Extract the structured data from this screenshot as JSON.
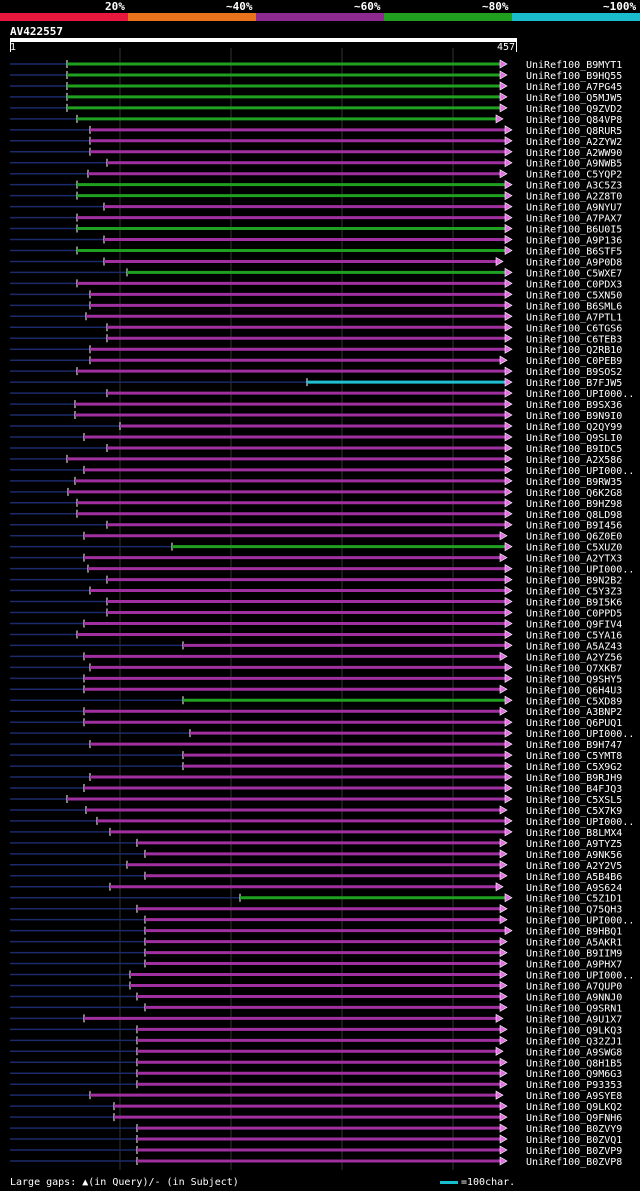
{
  "legend": {
    "segments": [
      {
        "label": "20%",
        "color": "#e8173c"
      },
      {
        "label": "~40%",
        "color": "#e8731c"
      },
      {
        "label": "~60%",
        "color": "#8e2a8f"
      },
      {
        "label": "~80%",
        "color": "#21a01f"
      },
      {
        "label": "~100%",
        "color": "#1abccb"
      }
    ]
  },
  "query": {
    "id": "AV422557",
    "start": "1",
    "end": "457"
  },
  "colors": {
    "purple": "#a030a0",
    "green": "#20a020",
    "cyan": "#20c0d0",
    "pink": "#e070e0",
    "navy": "#1a2a6a"
  },
  "footer": {
    "text": "Large gaps: ▲(in Query)/- (in Subject)",
    "scale": "=100char."
  },
  "hits": [
    {
      "name": "UniRef100_B9MYT1",
      "color": "green",
      "start": 67,
      "end": 500
    },
    {
      "name": "UniRef100_B9HQ55",
      "color": "green",
      "start": 67,
      "end": 500
    },
    {
      "name": "UniRef100_A7PG45",
      "color": "green",
      "start": 67,
      "end": 500
    },
    {
      "name": "UniRef100_Q5MJW5",
      "color": "green",
      "start": 67,
      "end": 500
    },
    {
      "name": "UniRef100_Q9ZVD2",
      "color": "green",
      "start": 67,
      "end": 500
    },
    {
      "name": "UniRef100_Q84VP8",
      "color": "green",
      "start": 77,
      "end": 496
    },
    {
      "name": "UniRef100_Q8RUR5",
      "color": "purple",
      "start": 90,
      "end": 505
    },
    {
      "name": "UniRef100_A2ZYW2",
      "color": "purple",
      "start": 90,
      "end": 505
    },
    {
      "name": "UniRef100_A2WW90",
      "color": "purple",
      "start": 90,
      "end": 505
    },
    {
      "name": "UniRef100_A9NWB5",
      "color": "purple",
      "start": 107,
      "end": 505
    },
    {
      "name": "UniRef100_C5YQP2",
      "color": "purple",
      "start": 88,
      "end": 500
    },
    {
      "name": "UniRef100_A3C5Z3",
      "color": "green",
      "start": 77,
      "end": 505
    },
    {
      "name": "UniRef100_A2Z8T0",
      "color": "green",
      "start": 77,
      "end": 505
    },
    {
      "name": "UniRef100_A9NYU7",
      "color": "purple",
      "start": 104,
      "end": 505
    },
    {
      "name": "UniRef100_A7PAX7",
      "color": "purple",
      "start": 77,
      "end": 505
    },
    {
      "name": "UniRef100_B6U0I5",
      "color": "green",
      "start": 77,
      "end": 505
    },
    {
      "name": "UniRef100_A9P136",
      "color": "purple",
      "start": 104,
      "end": 505
    },
    {
      "name": "UniRef100_B6STF5",
      "color": "green",
      "start": 77,
      "end": 505
    },
    {
      "name": "UniRef100_A9P0D8",
      "color": "purple",
      "start": 104,
      "end": 496
    },
    {
      "name": "UniRef100_C5WXE7",
      "color": "green",
      "start": 127,
      "end": 505
    },
    {
      "name": "UniRef100_C0PDX3",
      "color": "purple",
      "start": 77,
      "end": 505
    },
    {
      "name": "UniRef100_C5XN50",
      "color": "purple",
      "start": 90,
      "end": 505
    },
    {
      "name": "UniRef100_B6SML6",
      "color": "purple",
      "start": 90,
      "end": 505
    },
    {
      "name": "UniRef100_A7PTL1",
      "color": "purple",
      "start": 86,
      "end": 505
    },
    {
      "name": "UniRef100_C6TGS6",
      "color": "purple",
      "start": 107,
      "end": 505
    },
    {
      "name": "UniRef100_C6TEB3",
      "color": "purple",
      "start": 107,
      "end": 505
    },
    {
      "name": "UniRef100_Q2RB10",
      "color": "purple",
      "start": 90,
      "end": 505
    },
    {
      "name": "UniRef100_C0PEB9",
      "color": "purple",
      "start": 90,
      "end": 500
    },
    {
      "name": "UniRef100_B9SOS2",
      "color": "purple",
      "start": 77,
      "end": 505
    },
    {
      "name": "UniRef100_B7FJW5",
      "color": "cyan",
      "start": 307,
      "end": 505
    },
    {
      "name": "UniRef100_UPI000..",
      "color": "purple",
      "start": 107,
      "end": 505
    },
    {
      "name": "UniRef100_B9SX36",
      "color": "purple",
      "start": 75,
      "end": 505
    },
    {
      "name": "UniRef100_B9N9I0",
      "color": "purple",
      "start": 75,
      "end": 505
    },
    {
      "name": "UniRef100_Q2QY99",
      "color": "purple",
      "start": 120,
      "end": 505
    },
    {
      "name": "UniRef100_Q9SLI0",
      "color": "purple",
      "start": 84,
      "end": 505
    },
    {
      "name": "UniRef100_B9IDC5",
      "color": "purple",
      "start": 107,
      "end": 505
    },
    {
      "name": "UniRef100_A2X586",
      "color": "purple",
      "start": 67,
      "end": 505
    },
    {
      "name": "UniRef100_UPI000..",
      "color": "purple",
      "start": 84,
      "end": 505
    },
    {
      "name": "UniRef100_B9RW35",
      "color": "purple",
      "start": 75,
      "end": 505
    },
    {
      "name": "UniRef100_Q6K2G8",
      "color": "purple",
      "start": 68,
      "end": 505
    },
    {
      "name": "UniRef100_B9HZ98",
      "color": "purple",
      "start": 77,
      "end": 505
    },
    {
      "name": "UniRef100_Q8LD98",
      "color": "purple",
      "start": 77,
      "end": 505
    },
    {
      "name": "UniRef100_B9I456",
      "color": "purple",
      "start": 107,
      "end": 505
    },
    {
      "name": "UniRef100_Q6Z0E0",
      "color": "purple",
      "start": 84,
      "end": 500
    },
    {
      "name": "UniRef100_C5XUZ0",
      "color": "green",
      "start": 172,
      "end": 505
    },
    {
      "name": "UniRef100_A2YTX3",
      "color": "purple",
      "start": 84,
      "end": 500
    },
    {
      "name": "UniRef100_UPI000..",
      "color": "purple",
      "start": 88,
      "end": 505
    },
    {
      "name": "UniRef100_B9N2B2",
      "color": "purple",
      "start": 107,
      "end": 505
    },
    {
      "name": "UniRef100_C5Y3Z3",
      "color": "purple",
      "start": 90,
      "end": 505
    },
    {
      "name": "UniRef100_B9I5K6",
      "color": "purple",
      "start": 107,
      "end": 505
    },
    {
      "name": "UniRef100_C0PPD5",
      "color": "purple",
      "start": 107,
      "end": 505
    },
    {
      "name": "UniRef100_Q9FIV4",
      "color": "purple",
      "start": 84,
      "end": 505
    },
    {
      "name": "UniRef100_C5YA16",
      "color": "purple",
      "start": 77,
      "end": 505
    },
    {
      "name": "UniRef100_A5AZ43",
      "color": "purple",
      "start": 183,
      "end": 505
    },
    {
      "name": "UniRef100_A2YZ56",
      "color": "purple",
      "start": 84,
      "end": 500
    },
    {
      "name": "UniRef100_Q7XKB7",
      "color": "purple",
      "start": 90,
      "end": 505
    },
    {
      "name": "UniRef100_Q9SHY5",
      "color": "purple",
      "start": 84,
      "end": 505
    },
    {
      "name": "UniRef100_Q6H4U3",
      "color": "purple",
      "start": 84,
      "end": 500
    },
    {
      "name": "UniRef100_C5XD89",
      "color": "green",
      "start": 183,
      "end": 505
    },
    {
      "name": "UniRef100_A3BNP2",
      "color": "purple",
      "start": 84,
      "end": 500
    },
    {
      "name": "UniRef100_Q6PUQ1",
      "color": "purple",
      "start": 84,
      "end": 505
    },
    {
      "name": "UniRef100_UPI000..",
      "color": "purple",
      "start": 190,
      "end": 505
    },
    {
      "name": "UniRef100_B9H747",
      "color": "purple",
      "start": 90,
      "end": 505
    },
    {
      "name": "UniRef100_C5YMT8",
      "color": "purple",
      "start": 183,
      "end": 505
    },
    {
      "name": "UniRef100_C5X9G2",
      "color": "purple",
      "start": 183,
      "end": 505
    },
    {
      "name": "UniRef100_B9RJH9",
      "color": "purple",
      "start": 90,
      "end": 505
    },
    {
      "name": "UniRef100_B4FJQ3",
      "color": "purple",
      "start": 84,
      "end": 505
    },
    {
      "name": "UniRef100_C5XSL5",
      "color": "purple",
      "start": 67,
      "end": 505
    },
    {
      "name": "UniRef100_C5X7K9",
      "color": "purple",
      "start": 86,
      "end": 500
    },
    {
      "name": "UniRef100_UPI000..",
      "color": "purple",
      "start": 97,
      "end": 505
    },
    {
      "name": "UniRef100_B8LMX4",
      "color": "purple",
      "start": 110,
      "end": 505
    },
    {
      "name": "UniRef100_A9TYZ5",
      "color": "purple",
      "start": 137,
      "end": 500
    },
    {
      "name": "UniRef100_A9NK56",
      "color": "purple",
      "start": 145,
      "end": 500
    },
    {
      "name": "UniRef100_A2Y2V5",
      "color": "purple",
      "start": 127,
      "end": 500
    },
    {
      "name": "UniRef100_A5B4B6",
      "color": "purple",
      "start": 145,
      "end": 500
    },
    {
      "name": "UniRef100_A9S624",
      "color": "purple",
      "start": 110,
      "end": 496
    },
    {
      "name": "UniRef100_C5Z1D1",
      "color": "green",
      "start": 240,
      "end": 505
    },
    {
      "name": "UniRef100_Q75QH3",
      "color": "purple",
      "start": 137,
      "end": 500
    },
    {
      "name": "UniRef100_UPI000..",
      "color": "purple",
      "start": 145,
      "end": 500
    },
    {
      "name": "UniRef100_B9HBQ1",
      "color": "purple",
      "start": 145,
      "end": 505
    },
    {
      "name": "UniRef100_A5AKR1",
      "color": "purple",
      "start": 145,
      "end": 500
    },
    {
      "name": "UniRef100_B9IIM9",
      "color": "purple",
      "start": 145,
      "end": 500
    },
    {
      "name": "UniRef100_A9PHX7",
      "color": "purple",
      "start": 145,
      "end": 500
    },
    {
      "name": "UniRef100_UPI000..",
      "color": "purple",
      "start": 130,
      "end": 500
    },
    {
      "name": "UniRef100_A7QUP0",
      "color": "purple",
      "start": 130,
      "end": 500
    },
    {
      "name": "UniRef100_A9NNJ0",
      "color": "purple",
      "start": 137,
      "end": 500
    },
    {
      "name": "UniRef100_Q9SRN1",
      "color": "purple",
      "start": 145,
      "end": 500
    },
    {
      "name": "UniRef100_A9U1X7",
      "color": "purple",
      "start": 84,
      "end": 496
    },
    {
      "name": "UniRef100_Q9LKQ3",
      "color": "purple",
      "start": 137,
      "end": 500
    },
    {
      "name": "UniRef100_Q32ZJ1",
      "color": "purple",
      "start": 137,
      "end": 500
    },
    {
      "name": "UniRef100_A9SWG8",
      "color": "purple",
      "start": 137,
      "end": 496
    },
    {
      "name": "UniRef100_Q8H1B5",
      "color": "purple",
      "start": 137,
      "end": 500
    },
    {
      "name": "UniRef100_Q9M6G3",
      "color": "purple",
      "start": 137,
      "end": 500
    },
    {
      "name": "UniRef100_P93353",
      "color": "purple",
      "start": 137,
      "end": 500
    },
    {
      "name": "UniRef100_A9SYE8",
      "color": "purple",
      "start": 90,
      "end": 496
    },
    {
      "name": "UniRef100_Q9LKQ2",
      "color": "purple",
      "start": 114,
      "end": 500
    },
    {
      "name": "UniRef100_Q9FNH6",
      "color": "purple",
      "start": 114,
      "end": 500
    },
    {
      "name": "UniRef100_B0ZVY9",
      "color": "purple",
      "start": 137,
      "end": 500
    },
    {
      "name": "UniRef100_B0ZVQ1",
      "color": "purple",
      "start": 137,
      "end": 500
    },
    {
      "name": "UniRef100_B0ZVP9",
      "color": "purple",
      "start": 137,
      "end": 500
    },
    {
      "name": "UniRef100_B0ZVP8",
      "color": "purple",
      "start": 137,
      "end": 500
    }
  ]
}
